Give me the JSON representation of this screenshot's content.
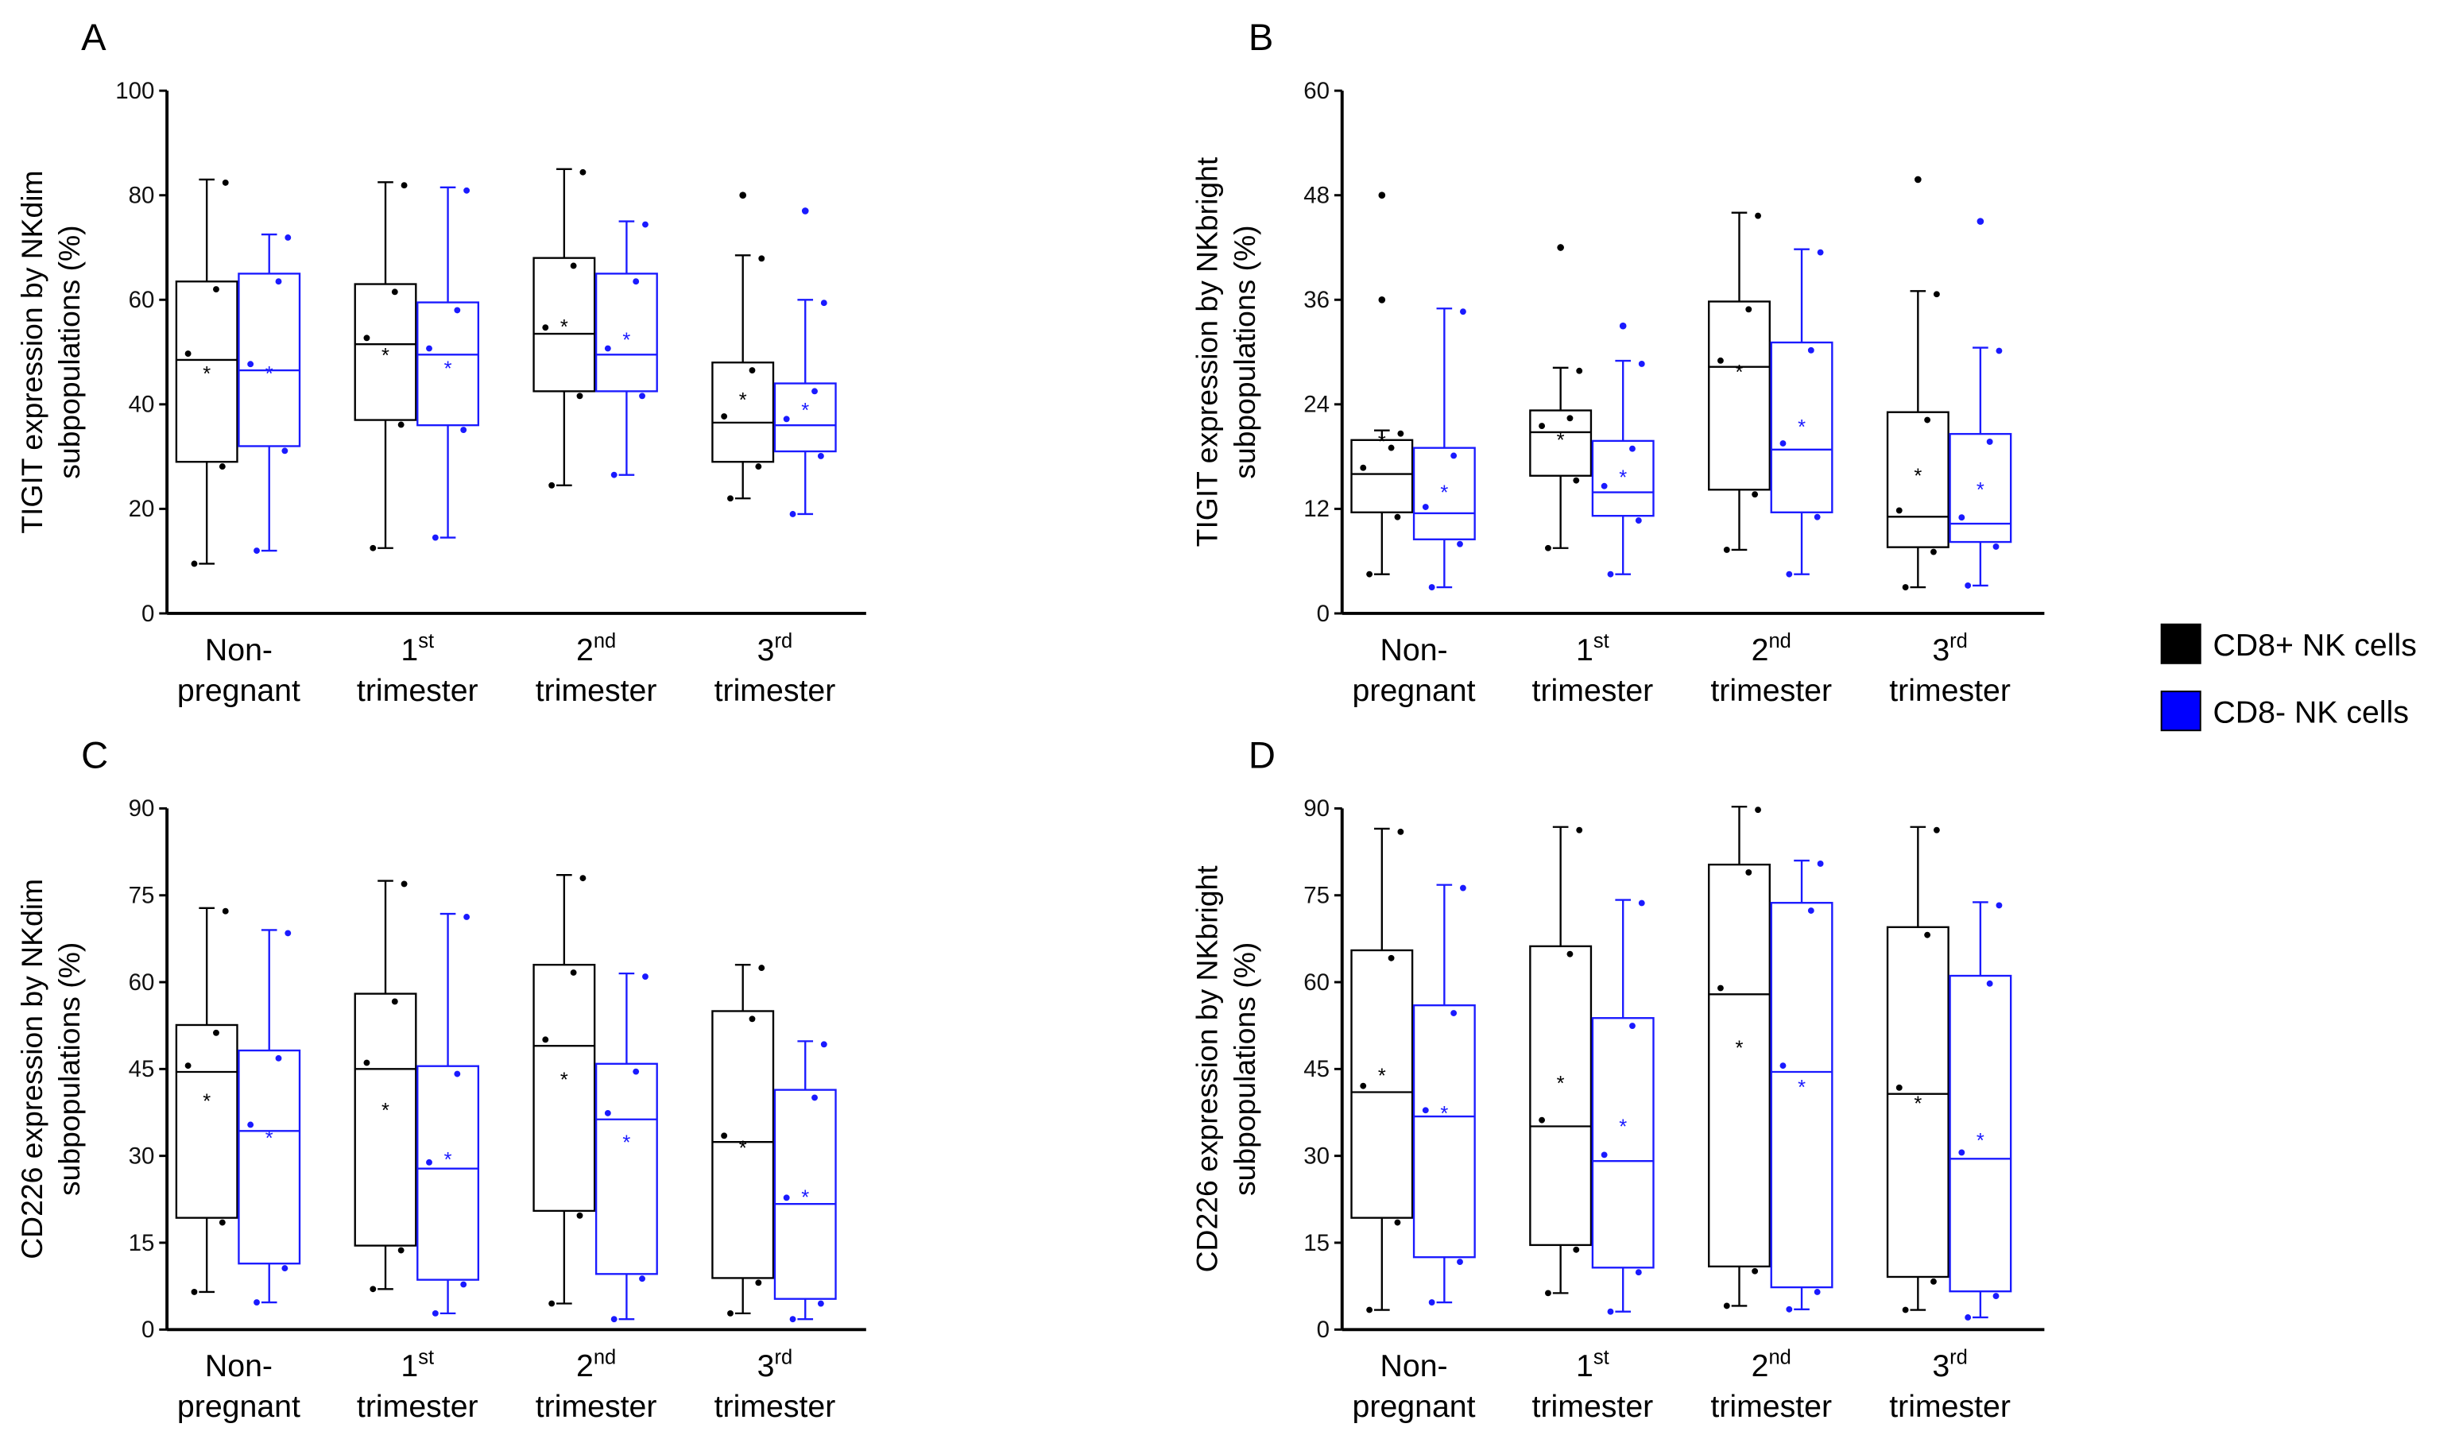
{
  "colors": {
    "cd8pos": "#000000",
    "cd8neg": "#1a1aff"
  },
  "legend": [
    {
      "label": "CD8+ NK cells",
      "color": "#000000"
    },
    {
      "label": "CD8- NK cells",
      "color": "#0000ff"
    }
  ],
  "categories": [
    {
      "main": "Non-",
      "sup": "",
      "line2": "pregnant"
    },
    {
      "main": "1",
      "sup": "st",
      "line2": "trimester"
    },
    {
      "main": "2",
      "sup": "nd",
      "line2": "trimester"
    },
    {
      "main": "3",
      "sup": "rd",
      "line2": "trimester"
    }
  ],
  "chart_data": [
    {
      "type": "box",
      "panel": "A",
      "ylabel_line1": "TIGIT expression by NKdim",
      "ylabel_line2": "subpopulations (%)",
      "ylim": [
        0,
        100
      ],
      "yticks": [
        0,
        20,
        40,
        60,
        80,
        100
      ],
      "series": [
        {
          "name": "CD8+ NK cells",
          "boxes": [
            {
              "min": 9.5,
              "q1": 29,
              "median": 48.5,
              "q3": 63.5,
              "max": 83,
              "mean": 46,
              "outliers": []
            },
            {
              "min": 12.5,
              "q1": 37,
              "median": 51.5,
              "q3": 63,
              "max": 82.5,
              "mean": 49.5,
              "outliers": []
            },
            {
              "min": 24.5,
              "q1": 42.5,
              "median": 53.5,
              "q3": 68,
              "max": 85,
              "mean": 55,
              "outliers": []
            },
            {
              "min": 22,
              "q1": 29,
              "median": 36.5,
              "q3": 48,
              "max": 68.5,
              "mean": 41,
              "outliers": [
                80
              ]
            }
          ]
        },
        {
          "name": "CD8- NK cells",
          "boxes": [
            {
              "min": 12,
              "q1": 32,
              "median": 46.5,
              "q3": 65,
              "max": 72.5,
              "mean": 46,
              "outliers": []
            },
            {
              "min": 14.5,
              "q1": 36,
              "median": 49.5,
              "q3": 59.5,
              "max": 81.5,
              "mean": 47,
              "outliers": []
            },
            {
              "min": 26.5,
              "q1": 42.5,
              "median": 49.5,
              "q3": 65,
              "max": 75,
              "mean": 52.5,
              "outliers": []
            },
            {
              "min": 19,
              "q1": 31,
              "median": 36,
              "q3": 44,
              "max": 60,
              "mean": 39,
              "outliers": [
                77
              ]
            }
          ]
        }
      ]
    },
    {
      "type": "box",
      "panel": "B",
      "ylabel_line1": "TIGIT expression by NKbright",
      "ylabel_line2": "subpopulations (%)",
      "ylim": [
        0,
        60
      ],
      "yticks": [
        0,
        12,
        24,
        36,
        48,
        60
      ],
      "series": [
        {
          "name": "CD8+ NK cells",
          "boxes": [
            {
              "min": 4.5,
              "q1": 11.6,
              "median": 16,
              "q3": 19.9,
              "max": 21,
              "mean": 19.8,
              "outliers": [
                36,
                48
              ]
            },
            {
              "min": 7.5,
              "q1": 15.8,
              "median": 20.8,
              "q3": 23.3,
              "max": 28.2,
              "mean": 20,
              "outliers": [
                42
              ]
            },
            {
              "min": 7.3,
              "q1": 14.2,
              "median": 28.3,
              "q3": 35.8,
              "max": 46,
              "mean": 27.8,
              "outliers": []
            },
            {
              "min": 3,
              "q1": 7.6,
              "median": 11.1,
              "q3": 23.1,
              "max": 37,
              "mean": 15.9,
              "outliers": [
                49.8
              ]
            }
          ]
        },
        {
          "name": "CD8- NK cells",
          "boxes": [
            {
              "min": 3,
              "q1": 8.5,
              "median": 11.5,
              "q3": 19,
              "max": 35,
              "mean": 14,
              "outliers": []
            },
            {
              "min": 4.5,
              "q1": 11.2,
              "median": 13.9,
              "q3": 19.8,
              "max": 29,
              "mean": 15.7,
              "outliers": [
                33
              ]
            },
            {
              "min": 4.5,
              "q1": 11.6,
              "median": 18.8,
              "q3": 31.1,
              "max": 41.8,
              "mean": 21.5,
              "outliers": []
            },
            {
              "min": 3.2,
              "q1": 8.2,
              "median": 10.3,
              "q3": 20.6,
              "max": 30.5,
              "mean": 14.3,
              "outliers": [
                45
              ]
            }
          ]
        }
      ]
    },
    {
      "type": "box",
      "panel": "C",
      "ylabel_line1": "CD226 expression by NKdim",
      "ylabel_line2": "subpopulations (%)",
      "ylim": [
        0,
        90
      ],
      "yticks": [
        0,
        15,
        30,
        45,
        60,
        75,
        90
      ],
      "series": [
        {
          "name": "CD8+ NK cells",
          "boxes": [
            {
              "min": 6.5,
              "q1": 19.3,
              "median": 44.5,
              "q3": 52.6,
              "max": 72.8,
              "mean": 39.6,
              "outliers": []
            },
            {
              "min": 7,
              "q1": 14.5,
              "median": 45,
              "q3": 58,
              "max": 77.5,
              "mean": 38,
              "outliers": []
            },
            {
              "min": 4.5,
              "q1": 20.5,
              "median": 49,
              "q3": 63,
              "max": 78.5,
              "mean": 43.3,
              "outliers": []
            },
            {
              "min": 2.8,
              "q1": 8.9,
              "median": 32.4,
              "q3": 55,
              "max": 63,
              "mean": 31.5,
              "outliers": []
            }
          ]
        },
        {
          "name": "CD8- NK cells",
          "boxes": [
            {
              "min": 4.7,
              "q1": 11.4,
              "median": 34.3,
              "q3": 48.2,
              "max": 69,
              "mean": 33.2,
              "outliers": []
            },
            {
              "min": 2.8,
              "q1": 8.6,
              "median": 27.8,
              "q3": 45.5,
              "max": 71.8,
              "mean": 29.5,
              "outliers": []
            },
            {
              "min": 1.8,
              "q1": 9.6,
              "median": 36.3,
              "q3": 45.9,
              "max": 61.5,
              "mean": 32.5,
              "outliers": []
            },
            {
              "min": 1.8,
              "q1": 5.3,
              "median": 21.7,
              "q3": 41.4,
              "max": 49.8,
              "mean": 23,
              "outliers": []
            }
          ]
        }
      ]
    },
    {
      "type": "box",
      "panel": "D",
      "ylabel_line1": "CD226 expression by NKbright",
      "ylabel_line2": "subpopulations (%)",
      "ylim": [
        0,
        90
      ],
      "yticks": [
        0,
        15,
        30,
        45,
        60,
        75,
        90
      ],
      "series": [
        {
          "name": "CD8+ NK cells",
          "boxes": [
            {
              "min": 3.4,
              "q1": 19.3,
              "median": 41,
              "q3": 65.5,
              "max": 86.5,
              "mean": 44,
              "outliers": []
            },
            {
              "min": 6.3,
              "q1": 14.6,
              "median": 35.1,
              "q3": 66.2,
              "max": 86.8,
              "mean": 42.7,
              "outliers": []
            },
            {
              "min": 4.1,
              "q1": 10.9,
              "median": 57.9,
              "q3": 80.3,
              "max": 90.3,
              "mean": 48.8,
              "outliers": []
            },
            {
              "min": 3.4,
              "q1": 9.1,
              "median": 40.7,
              "q3": 69.5,
              "max": 86.8,
              "mean": 39.2,
              "outliers": []
            }
          ]
        },
        {
          "name": "CD8- NK cells",
          "boxes": [
            {
              "min": 4.7,
              "q1": 12.5,
              "median": 36.8,
              "q3": 56,
              "max": 76.8,
              "mean": 37.5,
              "outliers": []
            },
            {
              "min": 3.1,
              "q1": 10.7,
              "median": 29.1,
              "q3": 53.8,
              "max": 74.2,
              "mean": 35.2,
              "outliers": []
            },
            {
              "min": 3.5,
              "q1": 7.3,
              "median": 44.5,
              "q3": 73.7,
              "max": 81,
              "mean": 42,
              "outliers": []
            },
            {
              "min": 2.1,
              "q1": 6.6,
              "median": 29.5,
              "q3": 61.1,
              "max": 73.8,
              "mean": 32.8,
              "outliers": []
            }
          ]
        }
      ]
    }
  ]
}
